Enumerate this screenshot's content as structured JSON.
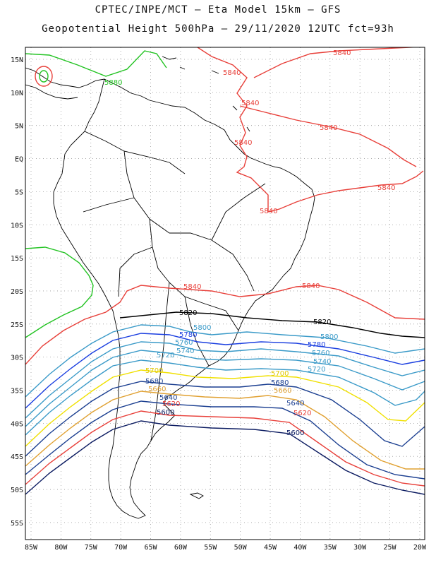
{
  "title_line1": "CPTEC/INPE/MCT –  Eta Model 15km – GFS",
  "title_line2": "Geopotential Height 500hPa – 29/11/2020 12UTC fct=93h",
  "lat_labels": [
    "15N",
    "10N",
    "5N",
    "EQ",
    "5S",
    "10S",
    "15S",
    "20S",
    "25S",
    "30S",
    "35S",
    "40S",
    "45S",
    "50S",
    "55S"
  ],
  "lon_labels": [
    "85W",
    "80W",
    "75W",
    "70W",
    "65W",
    "60W",
    "55W",
    "50W",
    "45W",
    "40W",
    "35W",
    "30W",
    "25W",
    "20W"
  ],
  "colors": {
    "c5880": "#22c322",
    "c5840": "#e8403a",
    "c5820": "#000000",
    "c5800": "#3a9ac8",
    "c5780": "#1a3ee0",
    "c5760": "#3a9ac8",
    "c5740": "#3a9ac8",
    "c5720": "#3a9ac8",
    "c5700": "#f0e000",
    "c5680": "#1a3e90",
    "c5660": "#e0a030",
    "c5640": "#1a3e90",
    "c5620": "#e8403a",
    "c5600": "#0a1a60",
    "coast": "#000000"
  },
  "contour_labels": [
    {
      "id": "l5880a",
      "text": "5880"
    },
    {
      "id": "l5840a",
      "text": "5840"
    },
    {
      "id": "l5840b",
      "text": "5840"
    },
    {
      "id": "l5840c",
      "text": "5840"
    },
    {
      "id": "l5840d",
      "text": "5840"
    },
    {
      "id": "l5840e",
      "text": "5840"
    },
    {
      "id": "l5840f",
      "text": "5840"
    },
    {
      "id": "l5840g",
      "text": "5840"
    },
    {
      "id": "l5840h",
      "text": "5840"
    },
    {
      "id": "l5840i",
      "text": "5840"
    },
    {
      "id": "l5820a",
      "text": "5820"
    },
    {
      "id": "l5820b",
      "text": "5820"
    },
    {
      "id": "l5800a",
      "text": "5800"
    },
    {
      "id": "l5800b",
      "text": "5800"
    },
    {
      "id": "l5780a",
      "text": "5780"
    },
    {
      "id": "l5780b",
      "text": "5780"
    },
    {
      "id": "l5760a",
      "text": "5760"
    },
    {
      "id": "l5760b",
      "text": "5760"
    },
    {
      "id": "l5740a",
      "text": "5740"
    },
    {
      "id": "l5740b",
      "text": "5740"
    },
    {
      "id": "l5720a",
      "text": "5720"
    },
    {
      "id": "l5720b",
      "text": "5720"
    },
    {
      "id": "l5700a",
      "text": "5700"
    },
    {
      "id": "l5700b",
      "text": "5700"
    },
    {
      "id": "l5680a",
      "text": "5680"
    },
    {
      "id": "l5680b",
      "text": "5680"
    },
    {
      "id": "l5660a",
      "text": "5660"
    },
    {
      "id": "l5660b",
      "text": "5660"
    },
    {
      "id": "l5640a",
      "text": "5640"
    },
    {
      "id": "l5640b",
      "text": "5640"
    },
    {
      "id": "l5620a",
      "text": "5620"
    },
    {
      "id": "l5620b",
      "text": "5620"
    },
    {
      "id": "l5600a",
      "text": "5600"
    },
    {
      "id": "l5600b",
      "text": "5600"
    }
  ]
}
